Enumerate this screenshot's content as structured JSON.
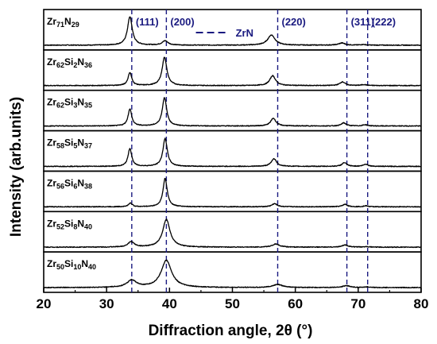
{
  "chart_data": {
    "type": "line",
    "xlabel": "Diffraction angle, 2θ (°)",
    "ylabel": "Intensity (arb.units)",
    "xlim": [
      20,
      80
    ],
    "x_ticks": [
      "20",
      "30",
      "40",
      "50",
      "60",
      "70",
      "80"
    ],
    "grid": false,
    "reference": {
      "name": "ZrN",
      "color": "#1a1a80",
      "lines": [
        {
          "x": 34.0,
          "label": "(111)"
        },
        {
          "x": 39.5,
          "label": "(200)"
        },
        {
          "x": 57.2,
          "label": "(220)"
        },
        {
          "x": 68.2,
          "label": "(311)"
        },
        {
          "x": 71.5,
          "label": "(222)"
        }
      ]
    },
    "series": [
      {
        "label": {
          "parts": [
            {
              "t": "Zr"
            },
            {
              "t": "71",
              "sub": true
            },
            {
              "t": "N"
            },
            {
              "t": "29",
              "sub": true
            }
          ]
        },
        "peaks": [
          {
            "x": 33.7,
            "h": 0.92,
            "w": 0.45
          },
          {
            "x": 39.3,
            "h": 0.14,
            "w": 0.55
          },
          {
            "x": 56.2,
            "h": 0.33,
            "w": 0.7
          },
          {
            "x": 67.4,
            "h": 0.07,
            "w": 0.6
          },
          {
            "x": 70.8,
            "h": 0.02,
            "w": 0.5
          }
        ]
      },
      {
        "label": {
          "parts": [
            {
              "t": "Zr"
            },
            {
              "t": "62",
              "sub": true
            },
            {
              "t": "Si"
            },
            {
              "t": "2",
              "sub": true
            },
            {
              "t": "N"
            },
            {
              "t": "36",
              "sub": true
            }
          ]
        },
        "peaks": [
          {
            "x": 33.7,
            "h": 0.42,
            "w": 0.35
          },
          {
            "x": 39.2,
            "h": 0.92,
            "w": 0.45
          },
          {
            "x": 56.4,
            "h": 0.32,
            "w": 0.55
          },
          {
            "x": 67.5,
            "h": 0.12,
            "w": 0.5
          },
          {
            "x": 70.9,
            "h": 0.03,
            "w": 0.5
          }
        ]
      },
      {
        "label": {
          "parts": [
            {
              "t": "Zr"
            },
            {
              "t": "62",
              "sub": true
            },
            {
              "t": "Si"
            },
            {
              "t": "3",
              "sub": true
            },
            {
              "t": "N"
            },
            {
              "t": "35",
              "sub": true
            }
          ]
        },
        "peaks": [
          {
            "x": 33.7,
            "h": 0.55,
            "w": 0.35
          },
          {
            "x": 39.2,
            "h": 0.92,
            "w": 0.42
          },
          {
            "x": 56.5,
            "h": 0.25,
            "w": 0.5
          },
          {
            "x": 67.7,
            "h": 0.1,
            "w": 0.45
          },
          {
            "x": 71.1,
            "h": 0.04,
            "w": 0.45
          }
        ]
      },
      {
        "label": {
          "parts": [
            {
              "t": "Zr"
            },
            {
              "t": "58",
              "sub": true
            },
            {
              "t": "Si"
            },
            {
              "t": "5",
              "sub": true
            },
            {
              "t": "N"
            },
            {
              "t": "37",
              "sub": true
            }
          ]
        },
        "peaks": [
          {
            "x": 33.7,
            "h": 0.58,
            "w": 0.35
          },
          {
            "x": 39.3,
            "h": 0.9,
            "w": 0.42
          },
          {
            "x": 56.6,
            "h": 0.25,
            "w": 0.5
          },
          {
            "x": 67.8,
            "h": 0.12,
            "w": 0.45
          },
          {
            "x": 71.2,
            "h": 0.07,
            "w": 0.45
          }
        ]
      },
      {
        "label": {
          "parts": [
            {
              "t": "Zr"
            },
            {
              "t": "56",
              "sub": true
            },
            {
              "t": "Si"
            },
            {
              "t": "6",
              "sub": true
            },
            {
              "t": "N"
            },
            {
              "t": "38",
              "sub": true
            }
          ]
        },
        "peaks": [
          {
            "x": 33.8,
            "h": 0.12,
            "w": 0.35
          },
          {
            "x": 39.3,
            "h": 0.92,
            "w": 0.4
          },
          {
            "x": 56.7,
            "h": 0.1,
            "w": 0.5
          },
          {
            "x": 67.9,
            "h": 0.08,
            "w": 0.45
          },
          {
            "x": 71.2,
            "h": 0.03,
            "w": 0.45
          }
        ]
      },
      {
        "label": {
          "parts": [
            {
              "t": "Zr"
            },
            {
              "t": "52",
              "sub": true
            },
            {
              "t": "Si"
            },
            {
              "t": "8",
              "sub": true
            },
            {
              "t": "N"
            },
            {
              "t": "40",
              "sub": true
            }
          ]
        },
        "peaks": [
          {
            "x": 33.9,
            "h": 0.17,
            "w": 0.6
          },
          {
            "x": 39.5,
            "h": 0.9,
            "w": 0.7
          },
          {
            "x": 56.9,
            "h": 0.1,
            "w": 0.7
          },
          {
            "x": 67.9,
            "h": 0.07,
            "w": 0.6
          },
          {
            "x": 71.3,
            "h": 0.02,
            "w": 0.5
          }
        ]
      },
      {
        "label": {
          "parts": [
            {
              "t": "Zr"
            },
            {
              "t": "50",
              "sub": true
            },
            {
              "t": "Si"
            },
            {
              "t": "10",
              "sub": true
            },
            {
              "t": "N"
            },
            {
              "t": "40",
              "sub": true
            }
          ]
        },
        "peaks": [
          {
            "x": 34.0,
            "h": 0.23,
            "w": 0.9
          },
          {
            "x": 39.5,
            "h": 0.88,
            "w": 1.0
          },
          {
            "x": 57.2,
            "h": 0.1,
            "w": 0.9
          },
          {
            "x": 68.1,
            "h": 0.06,
            "w": 0.7
          },
          {
            "x": 71.4,
            "h": 0.02,
            "w": 0.5
          }
        ]
      }
    ]
  }
}
